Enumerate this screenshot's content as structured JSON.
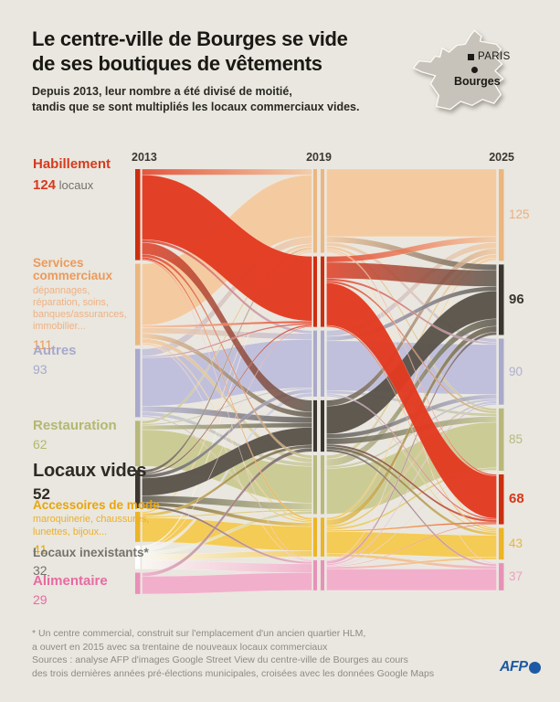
{
  "header": {
    "title_line1": "Le centre-ville de Bourges se vide",
    "title_line2": "de ses boutiques de vêtements",
    "subtitle_line1": "Depuis 2013, leur nombre a été divisé de moitié,",
    "subtitle_line2": "tandis que se sont multipliés les locaux commerciaux vides."
  },
  "map": {
    "city1": "PARIS",
    "city2": "Bourges",
    "land_color": "#C7C3BA"
  },
  "footnote": {
    "line1": "* Un centre commercial, construit sur l'emplacement d'un ancien quartier HLM,",
    "line2": "a ouvert en 2015 avec sa trentaine de nouveaux locaux commerciaux"
  },
  "sources": {
    "line1": "Sources : analyse AFP d'images Google Street View du centre-ville de Bourges au cours",
    "line2": "des trois dernières années pré-élections municipales, croisées avec les données Google Maps"
  },
  "logo": {
    "text": "AFP"
  },
  "chart_data": {
    "type": "sankey",
    "years": [
      "2013",
      "2019",
      "2025"
    ],
    "categories": {
      "H": {
        "label_lines": [
          "Habillement"
        ],
        "sub_lines": [],
        "value_2013": "124",
        "value_suffix": " locaux",
        "color": "#E23B21",
        "bar": "#CC2F10",
        "label_color": "#D63A1E",
        "right_color": "#D7371B"
      },
      "S": {
        "label_lines": [
          "Services",
          "commerciaux"
        ],
        "sub_lines": [
          "dépannages,",
          "réparation, soins,",
          "banques/assurances,",
          "immobilier..."
        ],
        "value_2013": "111",
        "color": "#F4C99F",
        "bar": "#ECB67F",
        "label_color": "#EC9A5B",
        "sub_color": "#F0B184",
        "right_color": "#EFAE7C"
      },
      "A": {
        "label_lines": [
          "Autres"
        ],
        "sub_lines": [],
        "value_2013": "93",
        "color": "#BEBEDC",
        "bar": "#A9A9CC",
        "label_color": "#A8A8CE",
        "right_color": "#AFAFD2"
      },
      "R": {
        "label_lines": [
          "Restauration"
        ],
        "sub_lines": [],
        "value_2013": "62",
        "color": "#C9C994",
        "bar": "#B7B87A",
        "label_color": "#B3B871",
        "right_color": "#B5B97E"
      },
      "V": {
        "label_lines": [
          "Locaux vides"
        ],
        "sub_lines": [],
        "value_2013": "52",
        "color": "#5A544B",
        "bar": "#3B3630",
        "label_color": "#2E2B26",
        "right_color": "#3A3731"
      },
      "Ac": {
        "label_lines": [
          "Accessoires de mode"
        ],
        "sub_lines": [
          "maroquinerie, chaussures,",
          "lunettes, bijoux..."
        ],
        "value_2013": "41",
        "color": "#F4C94F",
        "bar": "#EDB424",
        "label_color": "#E9A50B",
        "sub_color": "#ECAF2A",
        "right_color": "#EAB440"
      },
      "I": {
        "label_lines": [
          "Locaux inexistants*"
        ],
        "sub_lines": [],
        "value_2013": "32",
        "color": "#FBFAF5",
        "bar": "#FFFFFF",
        "label_color": "#76736C",
        "right_color": "#8F8C84"
      },
      "Al": {
        "label_lines": [
          "Alimentaire"
        ],
        "sub_lines": [],
        "value_2013": "29",
        "color": "#F2ACCA",
        "bar": "#E891B8",
        "label_color": "#E76BA2",
        "right_color": "#ECA0C4"
      }
    },
    "columns": [
      {
        "year": "2013",
        "order": [
          "H",
          "S",
          "A",
          "R",
          "V",
          "Ac",
          "I",
          "Al"
        ],
        "values": [
          124,
          111,
          93,
          62,
          52,
          41,
          32,
          29
        ],
        "labeled": true
      },
      {
        "year": "2019",
        "order": [
          "S",
          "H",
          "A",
          "V",
          "R",
          "Ac",
          "Al"
        ],
        "values": [
          114,
          96,
          90,
          70,
          80,
          53,
          41
        ],
        "labeled": false
      },
      {
        "year": "2025",
        "order": [
          "S",
          "V",
          "A",
          "R",
          "H",
          "Ac",
          "Al"
        ],
        "values": [
          125,
          96,
          90,
          85,
          68,
          43,
          37
        ],
        "labeled": true
      }
    ],
    "emphasized_2025": [
      "V",
      "H"
    ],
    "flows": [
      [
        0,
        "H",
        "H",
        88
      ],
      [
        0,
        "H",
        "S",
        8
      ],
      [
        0,
        "H",
        "V",
        16
      ],
      [
        0,
        "H",
        "A",
        4
      ],
      [
        0,
        "H",
        "R",
        4
      ],
      [
        0,
        "H",
        "Ac",
        3
      ],
      [
        0,
        "H",
        "Al",
        1
      ],
      [
        0,
        "S",
        "S",
        84
      ],
      [
        0,
        "S",
        "H",
        3
      ],
      [
        0,
        "S",
        "A",
        8
      ],
      [
        0,
        "S",
        "V",
        7
      ],
      [
        0,
        "S",
        "R",
        6
      ],
      [
        0,
        "S",
        "Ac",
        2
      ],
      [
        0,
        "S",
        "Al",
        1
      ],
      [
        0,
        "A",
        "A",
        66
      ],
      [
        0,
        "A",
        "S",
        10
      ],
      [
        0,
        "A",
        "V",
        8
      ],
      [
        0,
        "A",
        "R",
        5
      ],
      [
        0,
        "A",
        "H",
        2
      ],
      [
        0,
        "A",
        "Ac",
        2
      ],
      [
        0,
        "R",
        "R",
        50
      ],
      [
        0,
        "R",
        "V",
        6
      ],
      [
        0,
        "R",
        "S",
        4
      ],
      [
        0,
        "R",
        "A",
        2
      ],
      [
        0,
        "V",
        "V",
        24
      ],
      [
        0,
        "V",
        "S",
        4
      ],
      [
        0,
        "V",
        "H",
        2
      ],
      [
        0,
        "V",
        "A",
        5
      ],
      [
        0,
        "V",
        "R",
        9
      ],
      [
        0,
        "V",
        "Ac",
        5
      ],
      [
        0,
        "V",
        "Al",
        3
      ],
      [
        0,
        "Ac",
        "Ac",
        33
      ],
      [
        0,
        "Ac",
        "V",
        4
      ],
      [
        0,
        "Ac",
        "S",
        2
      ],
      [
        0,
        "Ac",
        "R",
        2
      ],
      [
        0,
        "I",
        "S",
        2
      ],
      [
        0,
        "I",
        "H",
        1
      ],
      [
        0,
        "I",
        "A",
        5
      ],
      [
        0,
        "I",
        "R",
        4
      ],
      [
        0,
        "I",
        "Ac",
        8
      ],
      [
        0,
        "I",
        "Al",
        12
      ],
      [
        0,
        "Al",
        "Al",
        24
      ],
      [
        0,
        "Al",
        "V",
        5
      ],
      [
        1,
        "S",
        "S",
        92
      ],
      [
        1,
        "S",
        "V",
        8
      ],
      [
        1,
        "S",
        "A",
        5
      ],
      [
        1,
        "S",
        "R",
        4
      ],
      [
        1,
        "S",
        "H",
        2
      ],
      [
        1,
        "S",
        "Ac",
        2
      ],
      [
        1,
        "S",
        "Al",
        1
      ],
      [
        1,
        "H",
        "H",
        58
      ],
      [
        1,
        "H",
        "V",
        22
      ],
      [
        1,
        "H",
        "S",
        8
      ],
      [
        1,
        "H",
        "A",
        3
      ],
      [
        1,
        "H",
        "R",
        3
      ],
      [
        1,
        "H",
        "Ac",
        2
      ],
      [
        1,
        "A",
        "A",
        68
      ],
      [
        1,
        "A",
        "S",
        8
      ],
      [
        1,
        "A",
        "V",
        6
      ],
      [
        1,
        "A",
        "R",
        4
      ],
      [
        1,
        "A",
        "H",
        2
      ],
      [
        1,
        "A",
        "Ac",
        2
      ],
      [
        1,
        "V",
        "V",
        38
      ],
      [
        1,
        "V",
        "S",
        8
      ],
      [
        1,
        "V",
        "A",
        6
      ],
      [
        1,
        "V",
        "R",
        8
      ],
      [
        1,
        "V",
        "H",
        3
      ],
      [
        1,
        "V",
        "Ac",
        4
      ],
      [
        1,
        "V",
        "Al",
        3
      ],
      [
        1,
        "R",
        "R",
        62
      ],
      [
        1,
        "R",
        "V",
        10
      ],
      [
        1,
        "R",
        "S",
        5
      ],
      [
        1,
        "R",
        "A",
        3
      ],
      [
        1,
        "Ac",
        "Ac",
        30
      ],
      [
        1,
        "Ac",
        "V",
        8
      ],
      [
        1,
        "Ac",
        "S",
        3
      ],
      [
        1,
        "Ac",
        "H",
        2
      ],
      [
        1,
        "Ac",
        "R",
        3
      ],
      [
        1,
        "Ac",
        "A",
        3
      ],
      [
        1,
        "Ac",
        "Al",
        4
      ],
      [
        1,
        "Al",
        "Al",
        29
      ],
      [
        1,
        "Al",
        "V",
        4
      ],
      [
        1,
        "Al",
        "S",
        1
      ],
      [
        1,
        "Al",
        "R",
        1
      ],
      [
        1,
        "Al",
        "H",
        1
      ],
      [
        1,
        "Al",
        "A",
        2
      ],
      [
        1,
        "Al",
        "Ac",
        3
      ]
    ]
  }
}
